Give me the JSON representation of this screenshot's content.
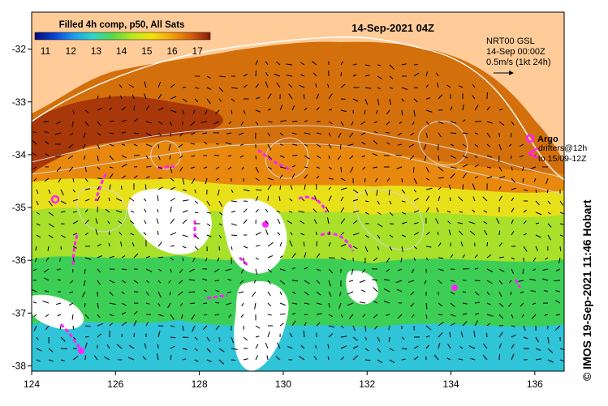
{
  "map": {
    "title": "14-Sep-2021 04Z",
    "colorbar": {
      "label": "Filled 4h comp, p50, All Sats",
      "ticks": [
        "11",
        "12",
        "13",
        "14",
        "15",
        "16",
        "17"
      ],
      "colors": [
        "#08087a",
        "#0a3fd8",
        "#1b9cf0",
        "#2fd6c9",
        "#56d84a",
        "#b8e81c",
        "#f2e20e",
        "#f6a20c",
        "#d4600a",
        "#8a1a08"
      ]
    },
    "current_legend": {
      "product": "NRT00 GSL",
      "time": "14-Sep 00:00Z",
      "scale": "0.5m/s (1kt 24h)"
    },
    "argo_legend": {
      "label": "Argo",
      "drifters_line1": "drifters@12h",
      "drifters_line2": "to 15/09-12Z",
      "color": "#ff22ff"
    },
    "x_axis": {
      "ticks": [
        "124",
        "126",
        "128",
        "130",
        "132",
        "134",
        "136"
      ],
      "range": [
        124,
        136.7
      ]
    },
    "y_axis": {
      "ticks": [
        "-32",
        "-33",
        "-34",
        "-35",
        "-36",
        "-37",
        "-38"
      ],
      "range": [
        -38.1,
        -31.3
      ]
    },
    "credit": "© IMOS 19-Sep-2021 11:46 Hobart",
    "colors": {
      "land": "#ffcc99",
      "coast": "#ffffff",
      "contour": "#c8c8c8"
    }
  }
}
